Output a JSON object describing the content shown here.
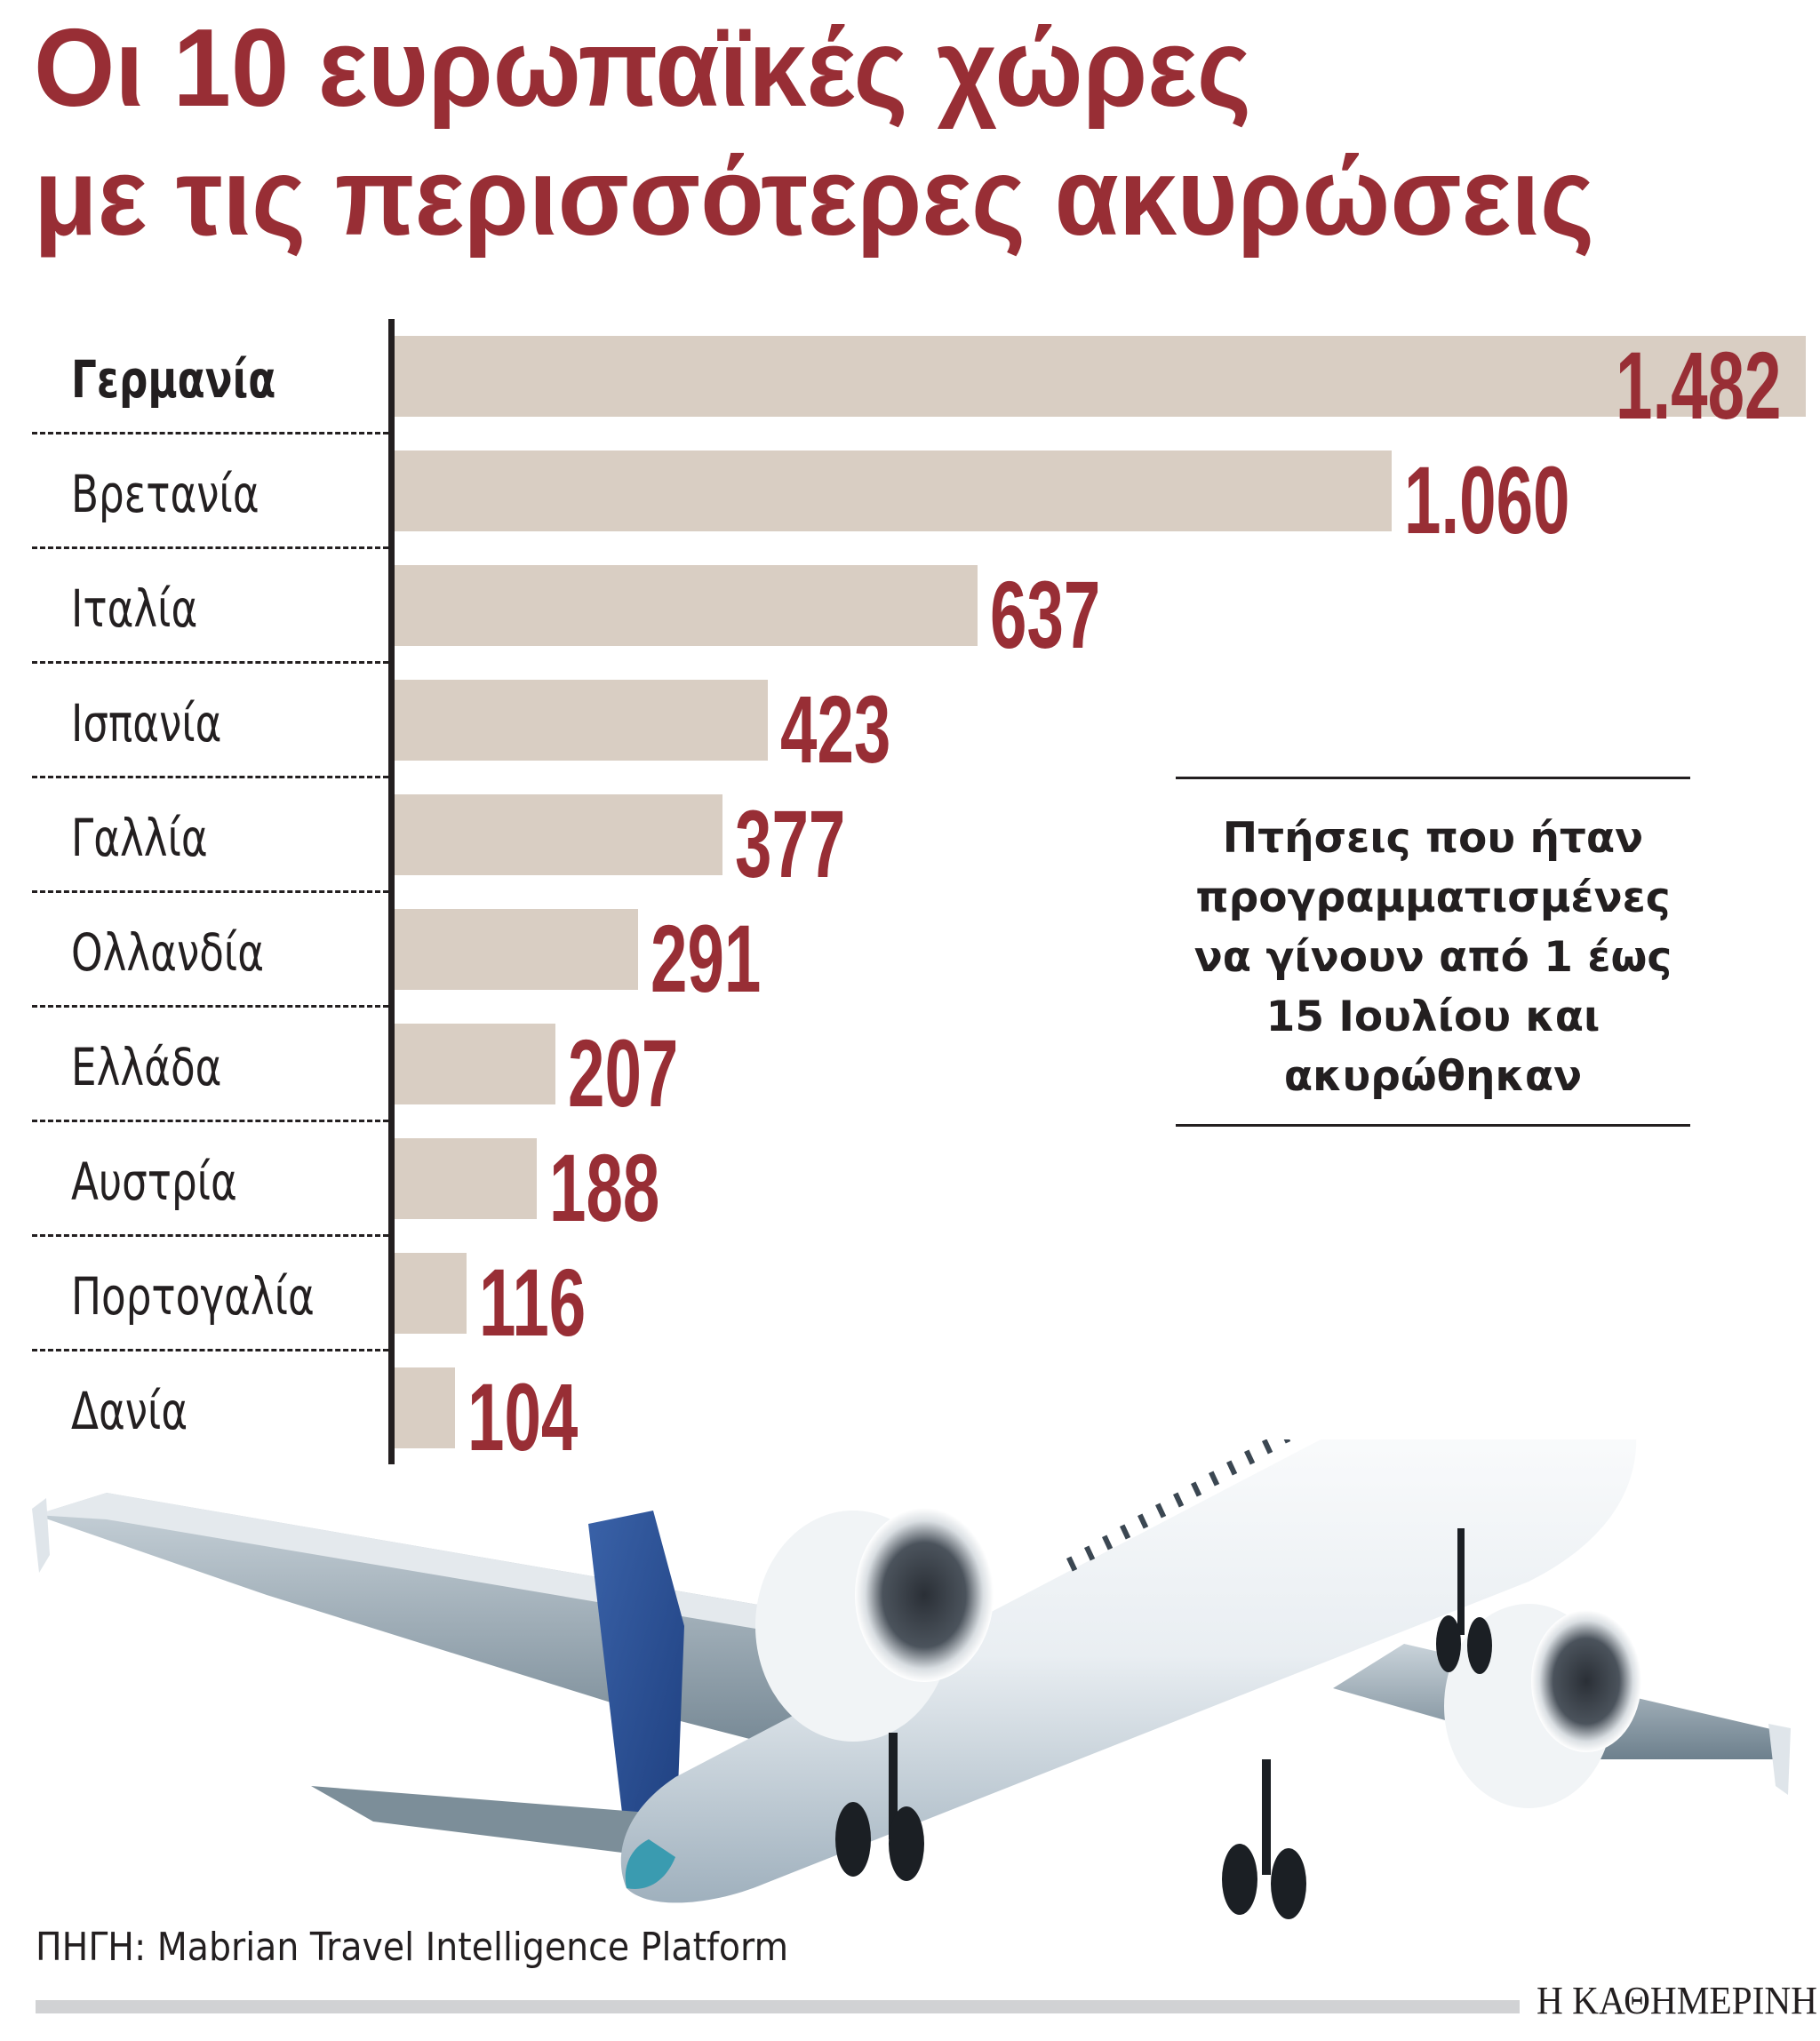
{
  "title": {
    "line1": "Οι 10 ευρωπαϊκές χώρες",
    "line2": "με τις περισσότερες ακυρώσεις"
  },
  "rows": [
    {
      "country": "Γερμανία",
      "value": 1482,
      "label": "1.482",
      "highlight": true
    },
    {
      "country": "Βρετανία",
      "value": 1060,
      "label": "1.060",
      "highlight": false
    },
    {
      "country": "Ιταλία",
      "value": 637,
      "label": "637",
      "highlight": false
    },
    {
      "country": "Ισπανία",
      "value": 423,
      "label": "423",
      "highlight": false
    },
    {
      "country": "Γαλλία",
      "value": 377,
      "label": "377",
      "highlight": false
    },
    {
      "country": "Ολλανδία",
      "value": 291,
      "label": "291",
      "highlight": false
    },
    {
      "country": "Ελλάδα",
      "value": 207,
      "label": "207",
      "highlight": false
    },
    {
      "country": "Αυστρία",
      "value": 188,
      "label": "188",
      "highlight": false
    },
    {
      "country": "Πορτογαλία",
      "value": 116,
      "label": "116",
      "highlight": false
    },
    {
      "country": "Δανία",
      "value": 104,
      "label": "104",
      "highlight": false
    }
  ],
  "note": {
    "lines": [
      "Πτήσεις που ήταν",
      "προγραμματισμένες",
      "να γίνουν από 1 έως",
      "15 Ιουλίου και",
      "ακυρώθηκαν"
    ]
  },
  "source": "ΠΗΓΗ: Mabrian Travel Intelligence Platform",
  "logo": "Η ΚΑΘΗΜΕΡΙΝΗ",
  "illustration": "airplane-taking-off",
  "colors": {
    "accent": "#982E35",
    "bar": "#D9CEC3",
    "text": "#231F20",
    "footer_bar": "#D1D2D4"
  },
  "chart_data": {
    "type": "bar",
    "orientation": "horizontal",
    "title": "Οι 10 ευρωπαϊκές χώρες με τις περισσότερες ακυρώσεις",
    "subtitle": "Πτήσεις που ήταν προγραμματισμένες να γίνουν από 1 έως 15 Ιουλίου και ακυρώθηκαν",
    "categories": [
      "Γερμανία",
      "Βρετανία",
      "Ιταλία",
      "Ισπανία",
      "Γαλλία",
      "Ολλανδία",
      "Ελλάδα",
      "Αυστρία",
      "Πορτογαλία",
      "Δανία"
    ],
    "values": [
      1482,
      1060,
      637,
      423,
      377,
      291,
      207,
      188,
      116,
      104
    ],
    "value_labels": [
      "1.482",
      "1.060",
      "637",
      "423",
      "377",
      "291",
      "207",
      "188",
      "116",
      "104"
    ],
    "xlabel": "",
    "ylabel": "",
    "grid": false,
    "legend": null,
    "source": "ΠΗΓΗ: Mabrian Travel Intelligence Platform"
  }
}
